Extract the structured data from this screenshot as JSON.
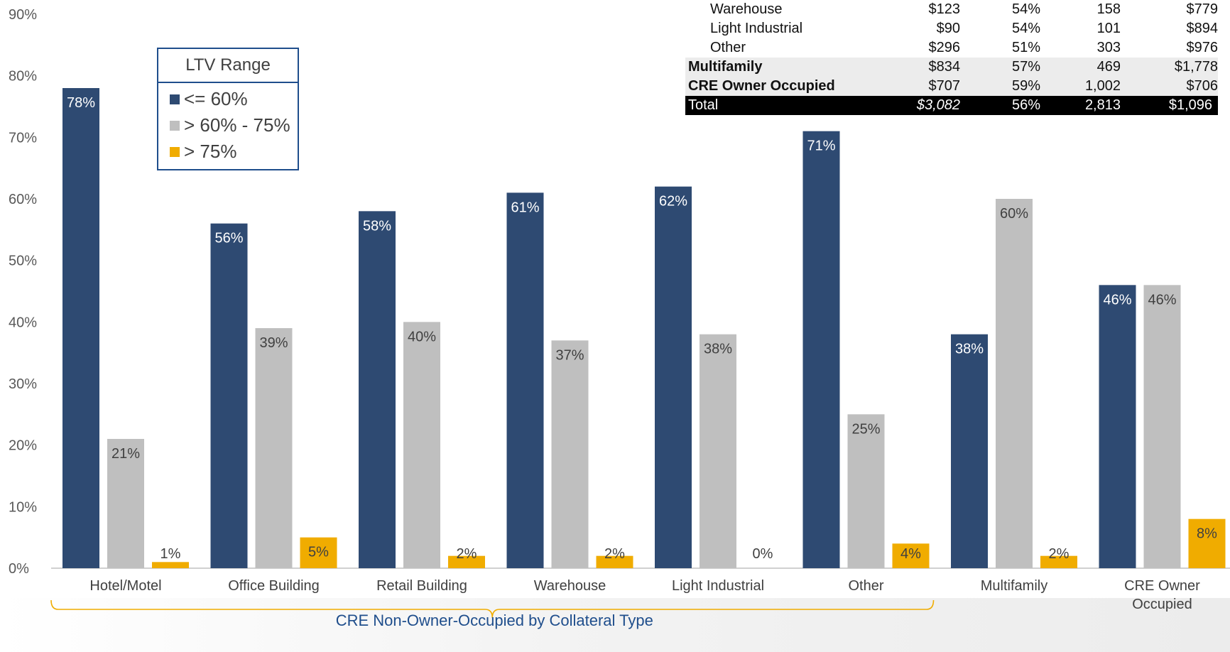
{
  "chart_data": {
    "type": "bar",
    "title": "",
    "xlabel": "CRE Non-Owner-Occupied by Collateral Type",
    "ylabel": "",
    "ylim": [
      0,
      90
    ],
    "y_ticks": [
      "0%",
      "10%",
      "20%",
      "30%",
      "40%",
      "50%",
      "60%",
      "70%",
      "80%",
      "90%"
    ],
    "grid": false,
    "legend_title": "LTV Range",
    "legend_position": "top-left",
    "categories": [
      "Hotel/Motel",
      "Office Building",
      "Retail Building",
      "Warehouse",
      "Light Industrial",
      "Other",
      "Multifamily",
      "CRE Owner Occupied"
    ],
    "category_lines": [
      [
        "Hotel/Motel"
      ],
      [
        "Office Building"
      ],
      [
        "Retail Building"
      ],
      [
        "Warehouse"
      ],
      [
        "Light Industrial"
      ],
      [
        "Other"
      ],
      [
        "Multifamily"
      ],
      [
        "CRE Owner",
        "Occupied"
      ]
    ],
    "series": [
      {
        "name": "<= 60%",
        "color": "#2e4a72",
        "values": [
          78,
          56,
          58,
          61,
          62,
          71,
          38,
          46
        ],
        "labels": [
          "78%",
          "56%",
          "58%",
          "61%",
          "62%",
          "71%",
          "38%",
          "46%"
        ]
      },
      {
        "name": "> 60% - 75%",
        "color": "#bfbfbf",
        "values": [
          21,
          39,
          40,
          37,
          38,
          25,
          60,
          46
        ],
        "labels": [
          "21%",
          "39%",
          "40%",
          "37%",
          "38%",
          "25%",
          "60%",
          "46%"
        ]
      },
      {
        "name": "> 75%",
        "color": "#f0ac00",
        "values": [
          1,
          5,
          2,
          2,
          0,
          4,
          2,
          8
        ],
        "labels": [
          "1%",
          "5%",
          "2%",
          "2%",
          "0%",
          "4%",
          "2%",
          "8%"
        ]
      }
    ],
    "bracket_group": [
      "Hotel/Motel",
      "Office Building",
      "Retail Building",
      "Warehouse",
      "Light Industrial",
      "Other"
    ]
  },
  "table": {
    "rows": [
      {
        "label": "Warehouse",
        "cells": [
          "$123",
          "54%",
          "158",
          "$779"
        ],
        "style": "indent"
      },
      {
        "label": "Light Industrial",
        "cells": [
          "$90",
          "54%",
          "101",
          "$894"
        ],
        "style": "indent"
      },
      {
        "label": "Other",
        "cells": [
          "$296",
          "51%",
          "303",
          "$976"
        ],
        "style": "indent"
      },
      {
        "label": "Multifamily",
        "cells": [
          "$834",
          "57%",
          "469",
          "$1,778"
        ],
        "style": "shade"
      },
      {
        "label": "CRE Owner Occupied",
        "cells": [
          "$707",
          "59%",
          "1,002",
          "$706"
        ],
        "style": "shade"
      },
      {
        "label": "Total",
        "cells": [
          "$3,082",
          "56%",
          "2,813",
          "$1,096"
        ],
        "style": "total"
      }
    ]
  }
}
